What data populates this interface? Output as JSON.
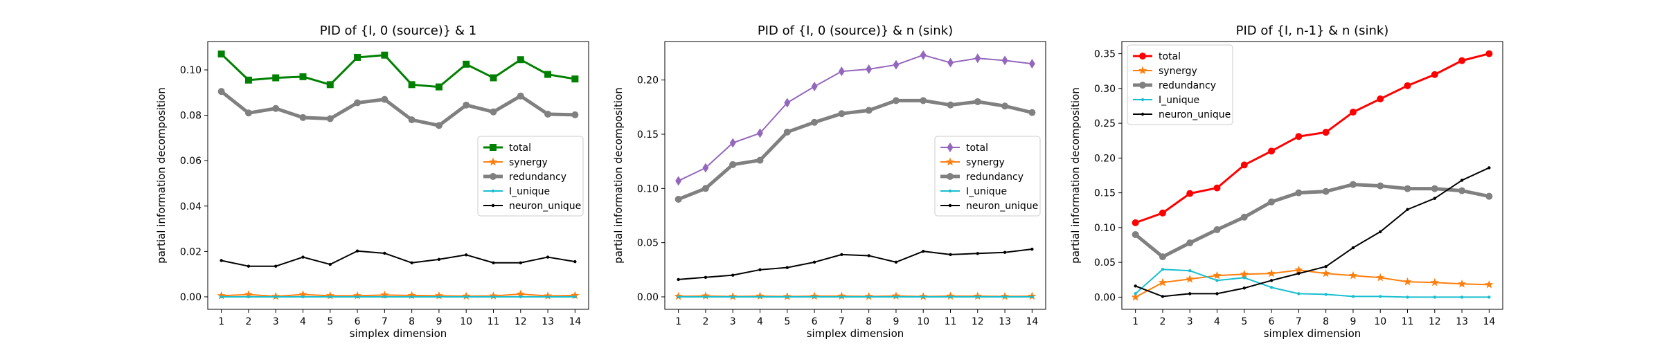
{
  "chart_data": [
    {
      "type": "line",
      "title": "PID of {I, 0 (source)} & 1",
      "xlabel": "simplex dimension",
      "ylabel": "partial information decomposition",
      "xlim": [
        0.5,
        14.5
      ],
      "ylim": [
        -0.0055,
        0.1125
      ],
      "x_ticks": [
        1,
        2,
        3,
        4,
        5,
        6,
        7,
        8,
        9,
        10,
        11,
        12,
        13,
        14
      ],
      "y_ticks": [
        0.0,
        0.02,
        0.04,
        0.06,
        0.08,
        0.1
      ],
      "y_tick_labels": [
        "0.00",
        "0.02",
        "0.04",
        "0.06",
        "0.08",
        "0.10"
      ],
      "legend_position": "center-right",
      "x": [
        1,
        2,
        3,
        4,
        5,
        6,
        7,
        8,
        9,
        10,
        11,
        12,
        13,
        14
      ],
      "series": [
        {
          "name": "total",
          "color": "#008000",
          "marker": "square",
          "width": 3,
          "values": [
            0.107,
            0.0955,
            0.0965,
            0.097,
            0.0935,
            0.1055,
            0.1065,
            0.0935,
            0.0925,
            0.1025,
            0.0965,
            0.1045,
            0.098,
            0.096
          ]
        },
        {
          "name": "synergy",
          "color": "#ff7f0e",
          "marker": "star",
          "width": 2,
          "values": [
            0.0005,
            0.001,
            0.0002,
            0.001,
            0.0005,
            0.0005,
            0.0008,
            0.0006,
            0.0005,
            0.0003,
            0.0004,
            0.0012,
            0.0004,
            0.0006
          ]
        },
        {
          "name": "redundancy",
          "color": "#808080",
          "marker": "circle",
          "width": 5,
          "values": [
            0.0905,
            0.081,
            0.083,
            0.079,
            0.0785,
            0.0855,
            0.087,
            0.078,
            0.0755,
            0.0845,
            0.0815,
            0.0885,
            0.0805,
            0.0802
          ]
        },
        {
          "name": "I_unique",
          "color": "#17becf",
          "marker": "dot",
          "width": 2,
          "values": [
            0,
            0,
            0,
            0,
            0,
            0,
            0,
            0,
            0,
            0,
            0,
            0,
            0,
            0
          ]
        },
        {
          "name": "neuron_unique",
          "color": "#000000",
          "marker": "dot",
          "width": 2,
          "values": [
            0.016,
            0.0135,
            0.0135,
            0.0175,
            0.0143,
            0.0202,
            0.0192,
            0.015,
            0.0165,
            0.0185,
            0.015,
            0.015,
            0.0175,
            0.0155
          ]
        }
      ]
    },
    {
      "type": "line",
      "title": "PID of {I, 0 (source)} & n (sink)",
      "xlabel": "simplex dimension",
      "ylabel": "partial information decomposition",
      "xlim": [
        0.5,
        14.5
      ],
      "ylim": [
        -0.0115,
        0.2355
      ],
      "x_ticks": [
        1,
        2,
        3,
        4,
        5,
        6,
        7,
        8,
        9,
        10,
        11,
        12,
        13,
        14
      ],
      "y_ticks": [
        0.0,
        0.05,
        0.1,
        0.15,
        0.2
      ],
      "y_tick_labels": [
        "0.00",
        "0.05",
        "0.10",
        "0.15",
        "0.20"
      ],
      "legend_position": "center-right",
      "x": [
        1,
        2,
        3,
        4,
        5,
        6,
        7,
        8,
        9,
        10,
        11,
        12,
        13,
        14
      ],
      "series": [
        {
          "name": "total",
          "color": "#9467bd",
          "marker": "diamond",
          "width": 2,
          "values": [
            0.107,
            0.119,
            0.142,
            0.151,
            0.179,
            0.194,
            0.208,
            0.21,
            0.214,
            0.223,
            0.216,
            0.22,
            0.218,
            0.215
          ]
        },
        {
          "name": "synergy",
          "color": "#ff7f0e",
          "marker": "star",
          "width": 2,
          "values": [
            0.0005,
            0.0008,
            0.0003,
            0.0007,
            0.0003,
            0.0006,
            0.0007,
            0.0004,
            0.0008,
            0.0003,
            0.0007,
            0.0006,
            0.0004,
            0.0006
          ]
        },
        {
          "name": "redundancy",
          "color": "#808080",
          "marker": "circle",
          "width": 5,
          "values": [
            0.09,
            0.1,
            0.122,
            0.126,
            0.152,
            0.161,
            0.169,
            0.172,
            0.181,
            0.181,
            0.177,
            0.18,
            0.176,
            0.17
          ]
        },
        {
          "name": "I_unique",
          "color": "#17becf",
          "marker": "dot",
          "width": 2,
          "values": [
            0,
            0,
            0,
            0,
            0,
            0,
            0,
            0,
            0,
            0,
            0,
            0,
            0,
            0
          ]
        },
        {
          "name": "neuron_unique",
          "color": "#000000",
          "marker": "dot",
          "width": 2,
          "values": [
            0.016,
            0.018,
            0.02,
            0.025,
            0.027,
            0.032,
            0.039,
            0.038,
            0.032,
            0.042,
            0.039,
            0.04,
            0.041,
            0.044
          ]
        }
      ]
    },
    {
      "type": "line",
      "title": "PID of {I, n-1} & n (sink)",
      "xlabel": "simplex dimension",
      "ylabel": "partial information decomposition",
      "xlim": [
        0.5,
        14.5
      ],
      "ylim": [
        -0.0175,
        0.3675
      ],
      "x_ticks": [
        1,
        2,
        3,
        4,
        5,
        6,
        7,
        8,
        9,
        10,
        11,
        12,
        13,
        14
      ],
      "y_ticks": [
        0.0,
        0.05,
        0.1,
        0.15,
        0.2,
        0.25,
        0.3,
        0.35
      ],
      "y_tick_labels": [
        "0.00",
        "0.05",
        "0.10",
        "0.15",
        "0.20",
        "0.25",
        "0.30",
        "0.35"
      ],
      "legend_position": "top-left",
      "x": [
        1,
        2,
        3,
        4,
        5,
        6,
        7,
        8,
        9,
        10,
        11,
        12,
        13,
        14
      ],
      "series": [
        {
          "name": "total",
          "color": "#ff0000",
          "marker": "circle",
          "width": 3,
          "values": [
            0.107,
            0.121,
            0.149,
            0.157,
            0.19,
            0.21,
            0.231,
            0.237,
            0.266,
            0.285,
            0.304,
            0.32,
            0.34,
            0.35
          ]
        },
        {
          "name": "synergy",
          "color": "#ff7f0e",
          "marker": "star",
          "width": 2,
          "values": [
            0.0,
            0.021,
            0.026,
            0.031,
            0.033,
            0.034,
            0.039,
            0.034,
            0.031,
            0.028,
            0.022,
            0.021,
            0.019,
            0.018
          ]
        },
        {
          "name": "redundancy",
          "color": "#808080",
          "marker": "circle",
          "width": 5,
          "values": [
            0.09,
            0.058,
            0.078,
            0.097,
            0.115,
            0.137,
            0.15,
            0.152,
            0.162,
            0.16,
            0.156,
            0.156,
            0.153,
            0.145
          ]
        },
        {
          "name": "I_unique",
          "color": "#17becf",
          "marker": "dot",
          "width": 2,
          "values": [
            0.005,
            0.04,
            0.038,
            0.024,
            0.028,
            0.014,
            0.005,
            0.004,
            0.001,
            0.001,
            0.0,
            0.0,
            0.0,
            0.0
          ]
        },
        {
          "name": "neuron_unique",
          "color": "#000000",
          "marker": "dot",
          "width": 2,
          "values": [
            0.016,
            0.001,
            0.005,
            0.005,
            0.013,
            0.024,
            0.034,
            0.044,
            0.071,
            0.094,
            0.126,
            0.142,
            0.168,
            0.186
          ]
        }
      ]
    }
  ]
}
